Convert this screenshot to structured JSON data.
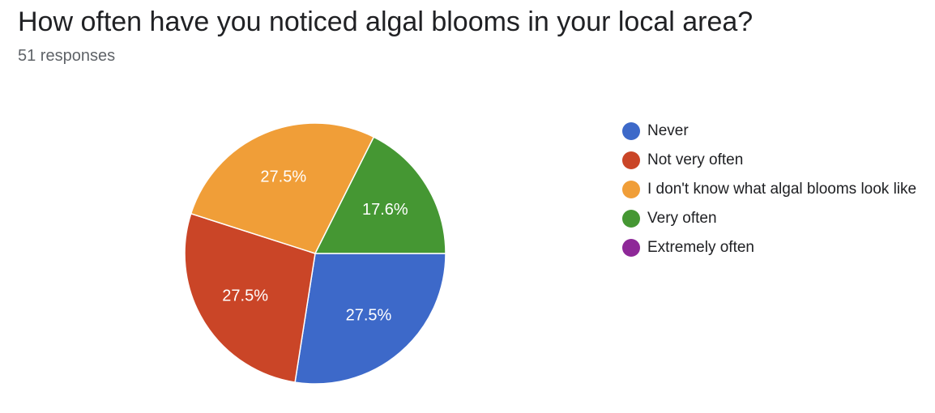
{
  "header": {
    "title": "How often have you noticed algal blooms in your local area?",
    "responses": "51 responses"
  },
  "chart_data": {
    "type": "pie",
    "title": "How often have you noticed algal blooms in your local area?",
    "slices": [
      {
        "label": "Never",
        "percent": 27.5,
        "display": "27.5%",
        "color": "#3d69c9"
      },
      {
        "label": "Not very often",
        "percent": 27.5,
        "display": "27.5%",
        "color": "#ca4527"
      },
      {
        "label": "I don't know what algal blooms look like",
        "percent": 27.5,
        "display": "27.5%",
        "color": "#f09e38"
      },
      {
        "label": "Very often",
        "percent": 17.6,
        "display": "17.6%",
        "color": "#459733"
      },
      {
        "label": "Extremely often",
        "percent": 0,
        "display": "",
        "color": "#8e2898"
      }
    ],
    "legend_position": "right"
  }
}
